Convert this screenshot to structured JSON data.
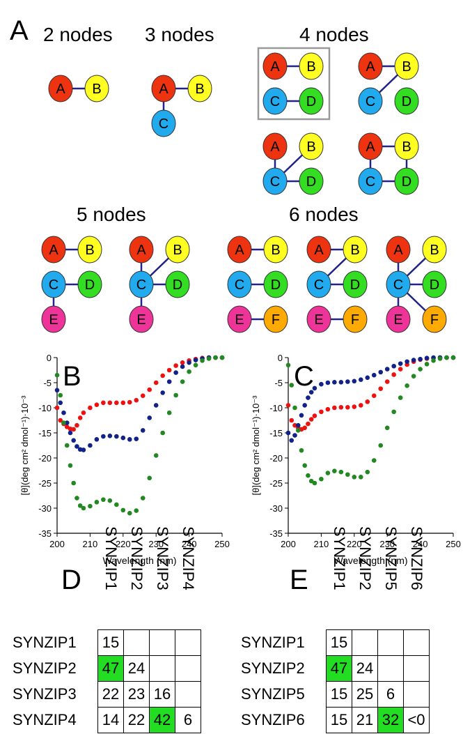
{
  "panels": {
    "a": "A",
    "b": "B",
    "c": "C",
    "d": "D",
    "e": "E"
  },
  "graph_titles": {
    "n2": "2 nodes",
    "n3": "3 nodes",
    "n4": "4 nodes",
    "n5": "5 nodes",
    "n6": "6 nodes"
  },
  "node_colors": {
    "A": "#ee3311",
    "B": "#ffff22",
    "C": "#22aaee",
    "D": "#33dd22",
    "E": "#ee3399",
    "F": "#ffaa00"
  },
  "edge_color": "#222288",
  "graphs": [
    {
      "group": "2 nodes",
      "nodes": [
        "A",
        "B"
      ],
      "edges": [
        [
          "A",
          "B"
        ]
      ]
    },
    {
      "group": "3 nodes",
      "nodes": [
        "A",
        "B",
        "C"
      ],
      "edges": [
        [
          "A",
          "B"
        ],
        [
          "A",
          "C"
        ]
      ]
    },
    {
      "group": "4 nodes",
      "boxed": true,
      "nodes": [
        "A",
        "B",
        "C",
        "D"
      ],
      "edges": [
        [
          "A",
          "B"
        ],
        [
          "C",
          "D"
        ]
      ]
    },
    {
      "group": "4 nodes",
      "nodes": [
        "A",
        "B",
        "C",
        "D"
      ],
      "edges": [
        [
          "A",
          "B"
        ],
        [
          "B",
          "C"
        ]
      ]
    },
    {
      "group": "4 nodes",
      "nodes": [
        "A",
        "B",
        "C",
        "D"
      ],
      "edges": [
        [
          "A",
          "C"
        ],
        [
          "B",
          "C"
        ],
        [
          "C",
          "D"
        ]
      ]
    },
    {
      "group": "4 nodes",
      "nodes": [
        "A",
        "B",
        "C",
        "D"
      ],
      "edges": [
        [
          "A",
          "B"
        ],
        [
          "A",
          "C"
        ],
        [
          "B",
          "D"
        ],
        [
          "C",
          "D"
        ]
      ]
    },
    {
      "group": "5 nodes",
      "nodes": [
        "A",
        "B",
        "C",
        "D",
        "E"
      ],
      "edges": [
        [
          "A",
          "B"
        ],
        [
          "C",
          "D"
        ],
        [
          "C",
          "E"
        ]
      ]
    },
    {
      "group": "5 nodes",
      "nodes": [
        "A",
        "B",
        "C",
        "D",
        "E"
      ],
      "edges": [
        [
          "A",
          "C"
        ],
        [
          "B",
          "C"
        ],
        [
          "C",
          "D"
        ],
        [
          "C",
          "E"
        ]
      ]
    },
    {
      "group": "6 nodes",
      "nodes": [
        "A",
        "B",
        "C",
        "D",
        "E",
        "F"
      ],
      "edges": [
        [
          "A",
          "B"
        ],
        [
          "C",
          "D"
        ],
        [
          "E",
          "F"
        ]
      ]
    },
    {
      "group": "6 nodes",
      "nodes": [
        "A",
        "B",
        "C",
        "D",
        "E",
        "F"
      ],
      "edges": [
        [
          "A",
          "B"
        ],
        [
          "B",
          "C"
        ],
        [
          "C",
          "D"
        ],
        [
          "E",
          "F"
        ]
      ]
    },
    {
      "group": "6 nodes",
      "nodes": [
        "A",
        "B",
        "C",
        "D",
        "E",
        "F"
      ],
      "edges": [
        [
          "A",
          "C"
        ],
        [
          "B",
          "C"
        ],
        [
          "C",
          "D"
        ],
        [
          "C",
          "E"
        ],
        [
          "C",
          "F"
        ]
      ]
    }
  ],
  "chart_data": [
    {
      "type": "scatter",
      "panel": "B",
      "xlabel": "Wavelength (nm)",
      "ylabel": "[θ](deg cm² dmol⁻¹)·10⁻³",
      "xlim": [
        200,
        250
      ],
      "ylim": [
        -35,
        0
      ],
      "xticks": [
        200,
        210,
        220,
        230,
        240,
        250
      ],
      "yticks": [
        0,
        -5,
        -10,
        -15,
        -20,
        -25,
        -30,
        -35
      ],
      "grid": false,
      "series": [
        {
          "color": "#ee1111",
          "x": [
            200,
            201,
            202,
            203,
            204,
            205,
            206,
            207,
            208,
            210,
            212,
            214,
            216,
            218,
            220,
            222,
            224,
            226,
            228,
            230,
            232,
            234,
            236,
            238,
            240,
            242,
            244,
            246,
            248,
            250
          ],
          "y": [
            -10,
            -12.5,
            -13.2,
            -13.8,
            -14.2,
            -14.3,
            -13.5,
            -12.0,
            -11.0,
            -10.0,
            -9.4,
            -9.0,
            -9.0,
            -9.0,
            -9.0,
            -8.9,
            -8.5,
            -7.6,
            -6.4,
            -5.0,
            -3.6,
            -2.5,
            -1.6,
            -1.0,
            -0.6,
            -0.3,
            -0.1,
            0,
            0,
            0
          ]
        },
        {
          "color": "#112288",
          "x": [
            200,
            201,
            202,
            203,
            204,
            205,
            206,
            207,
            208,
            210,
            212,
            214,
            216,
            218,
            220,
            222,
            224,
            226,
            228,
            230,
            232,
            234,
            236,
            238,
            240,
            242,
            244,
            246,
            248,
            250
          ],
          "y": [
            -6.5,
            -9,
            -11,
            -13,
            -15,
            -16.5,
            -17.7,
            -18.3,
            -18.4,
            -17.5,
            -16.3,
            -15.7,
            -15.6,
            -15.7,
            -16.0,
            -16.3,
            -16.2,
            -14.5,
            -12.0,
            -9.5,
            -7.0,
            -4.8,
            -3.0,
            -1.8,
            -1.0,
            -0.5,
            -0.2,
            0,
            0,
            0
          ]
        },
        {
          "color": "#228822",
          "x": [
            200,
            201,
            202,
            203,
            204,
            205,
            206,
            207,
            208,
            210,
            212,
            214,
            216,
            218,
            220,
            222,
            224,
            226,
            228,
            230,
            232,
            234,
            236,
            238,
            240,
            242,
            244,
            246,
            248,
            250
          ],
          "y": [
            -3.5,
            -7.5,
            -13,
            -17.5,
            -21.5,
            -25,
            -28,
            -29.5,
            -30.0,
            -29.6,
            -28.8,
            -28.3,
            -28.5,
            -29.3,
            -30.4,
            -31.0,
            -30.5,
            -28.0,
            -24.0,
            -19.5,
            -15.0,
            -11.0,
            -7.5,
            -4.8,
            -2.8,
            -1.5,
            -0.6,
            -0.2,
            0,
            0
          ]
        }
      ]
    },
    {
      "type": "scatter",
      "panel": "C",
      "xlabel": "Wavelength (nm)",
      "ylabel": "[θ](deg cm² dmol⁻¹)·10⁻³",
      "xlim": [
        200,
        250
      ],
      "ylim": [
        -35,
        0
      ],
      "xticks": [
        200,
        210,
        220,
        230,
        240,
        250
      ],
      "yticks": [
        0,
        -5,
        -10,
        -15,
        -20,
        -25,
        -30,
        -35
      ],
      "grid": false,
      "series": [
        {
          "color": "#ee1111",
          "x": [
            200,
            201,
            202,
            203,
            204,
            205,
            206,
            207,
            208,
            210,
            212,
            214,
            216,
            218,
            220,
            222,
            224,
            226,
            228,
            230,
            232,
            234,
            236,
            238,
            240,
            242,
            244,
            246,
            248,
            250
          ],
          "y": [
            -9.5,
            -12.5,
            -13.5,
            -14.0,
            -14.3,
            -14.0,
            -13.2,
            -12.3,
            -11.6,
            -10.8,
            -10.3,
            -10.0,
            -9.9,
            -9.9,
            -9.8,
            -9.5,
            -8.8,
            -7.6,
            -6.2,
            -4.8,
            -3.4,
            -2.3,
            -1.4,
            -0.8,
            -0.4,
            -0.2,
            -0.1,
            0,
            0,
            0
          ]
        },
        {
          "color": "#112288",
          "x": [
            200,
            201,
            202,
            203,
            204,
            205,
            206,
            207,
            208,
            210,
            212,
            214,
            216,
            218,
            220,
            222,
            224,
            226,
            228,
            230,
            232,
            234,
            236,
            238,
            240,
            242,
            244,
            246,
            248,
            250
          ],
          "y": [
            -15,
            -16.5,
            -15.5,
            -13.5,
            -11.5,
            -9.5,
            -8.0,
            -6.9,
            -6.1,
            -5.3,
            -5.0,
            -4.9,
            -4.9,
            -4.8,
            -4.7,
            -4.4,
            -4.0,
            -3.5,
            -2.9,
            -2.3,
            -1.7,
            -1.2,
            -0.8,
            -0.5,
            -0.3,
            -0.1,
            0,
            0,
            0,
            0
          ]
        },
        {
          "color": "#228822",
          "x": [
            200,
            201,
            202,
            203,
            204,
            205,
            206,
            207,
            208,
            210,
            212,
            214,
            216,
            218,
            220,
            222,
            224,
            226,
            228,
            230,
            232,
            234,
            236,
            238,
            240,
            242,
            244,
            246,
            248,
            250
          ],
          "y": [
            -1.5,
            -5.5,
            -10,
            -14.5,
            -18.5,
            -21.5,
            -23.5,
            -24.6,
            -25.0,
            -24.2,
            -23.0,
            -22.6,
            -22.8,
            -23.3,
            -23.8,
            -23.8,
            -22.8,
            -20.5,
            -17.5,
            -14.0,
            -10.8,
            -8.0,
            -5.6,
            -3.7,
            -2.3,
            -1.3,
            -0.6,
            -0.2,
            0,
            0
          ]
        }
      ]
    },
    {
      "type": "table",
      "panel": "D",
      "columns": [
        "SYNZIP1",
        "SYNZIP2",
        "SYNZIP3",
        "SYNZIP4"
      ],
      "rows": [
        {
          "label": "SYNZIP1",
          "cells": [
            "15",
            "",
            "",
            ""
          ]
        },
        {
          "label": "SYNZIP2",
          "cells": [
            "47",
            "24",
            "",
            ""
          ]
        },
        {
          "label": "SYNZIP3",
          "cells": [
            "22",
            "23",
            "16",
            ""
          ]
        },
        {
          "label": "SYNZIP4",
          "cells": [
            "14",
            "22",
            "42",
            "6"
          ]
        }
      ],
      "highlight": [
        [
          1,
          0
        ],
        [
          3,
          2
        ]
      ],
      "highlight_color": "#22dd22"
    },
    {
      "type": "table",
      "panel": "E",
      "columns": [
        "SYNZIP1",
        "SYNZIP2",
        "SYNZIP5",
        "SYNZIP6"
      ],
      "rows": [
        {
          "label": "SYNZIP1",
          "cells": [
            "15",
            "",
            "",
            ""
          ]
        },
        {
          "label": "SYNZIP2",
          "cells": [
            "47",
            "24",
            "",
            ""
          ]
        },
        {
          "label": "SYNZIP5",
          "cells": [
            "15",
            "25",
            "6",
            ""
          ]
        },
        {
          "label": "SYNZIP6",
          "cells": [
            "15",
            "21",
            "32",
            "<0"
          ]
        }
      ],
      "highlight": [
        [
          1,
          0
        ],
        [
          3,
          2
        ]
      ],
      "highlight_color": "#22dd22"
    }
  ]
}
